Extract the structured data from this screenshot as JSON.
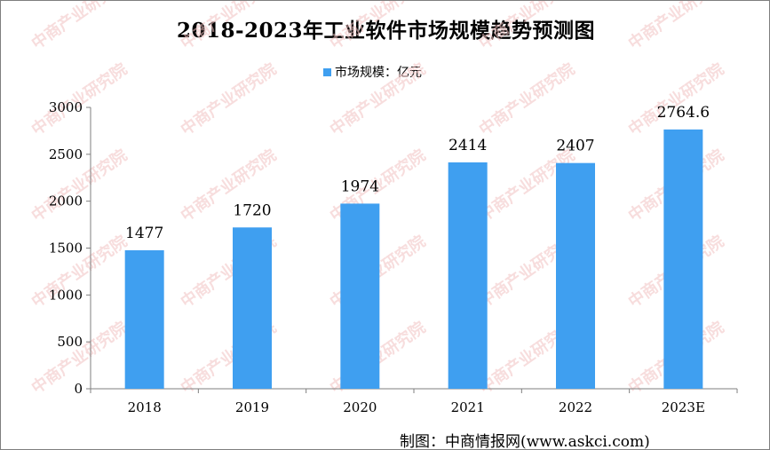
{
  "chart_data": {
    "type": "bar",
    "title": "2018-2023年工业软件市场规模趋势预测图",
    "legend": [
      "市场规模：亿元"
    ],
    "legend_position": "top-center",
    "categories": [
      "2018",
      "2019",
      "2020",
      "2021",
      "2022",
      "2023E"
    ],
    "series": [
      {
        "name": "市场规模：亿元",
        "values": [
          1477,
          1720,
          1974,
          2414,
          2407,
          2764.6
        ],
        "value_labels": [
          "1477",
          "1720",
          "1974",
          "2414",
          "2407",
          "2764.6"
        ]
      }
    ],
    "xlabel": "",
    "ylabel": "",
    "ylim": [
      0,
      3000
    ],
    "yticks": [
      0,
      500,
      1000,
      1500,
      2000,
      2500,
      3000
    ],
    "grid": false,
    "bar_color": "#3f9ff0"
  },
  "source": "制图：中商情报网(www.askci.com)",
  "watermark": "中商产业研究院"
}
